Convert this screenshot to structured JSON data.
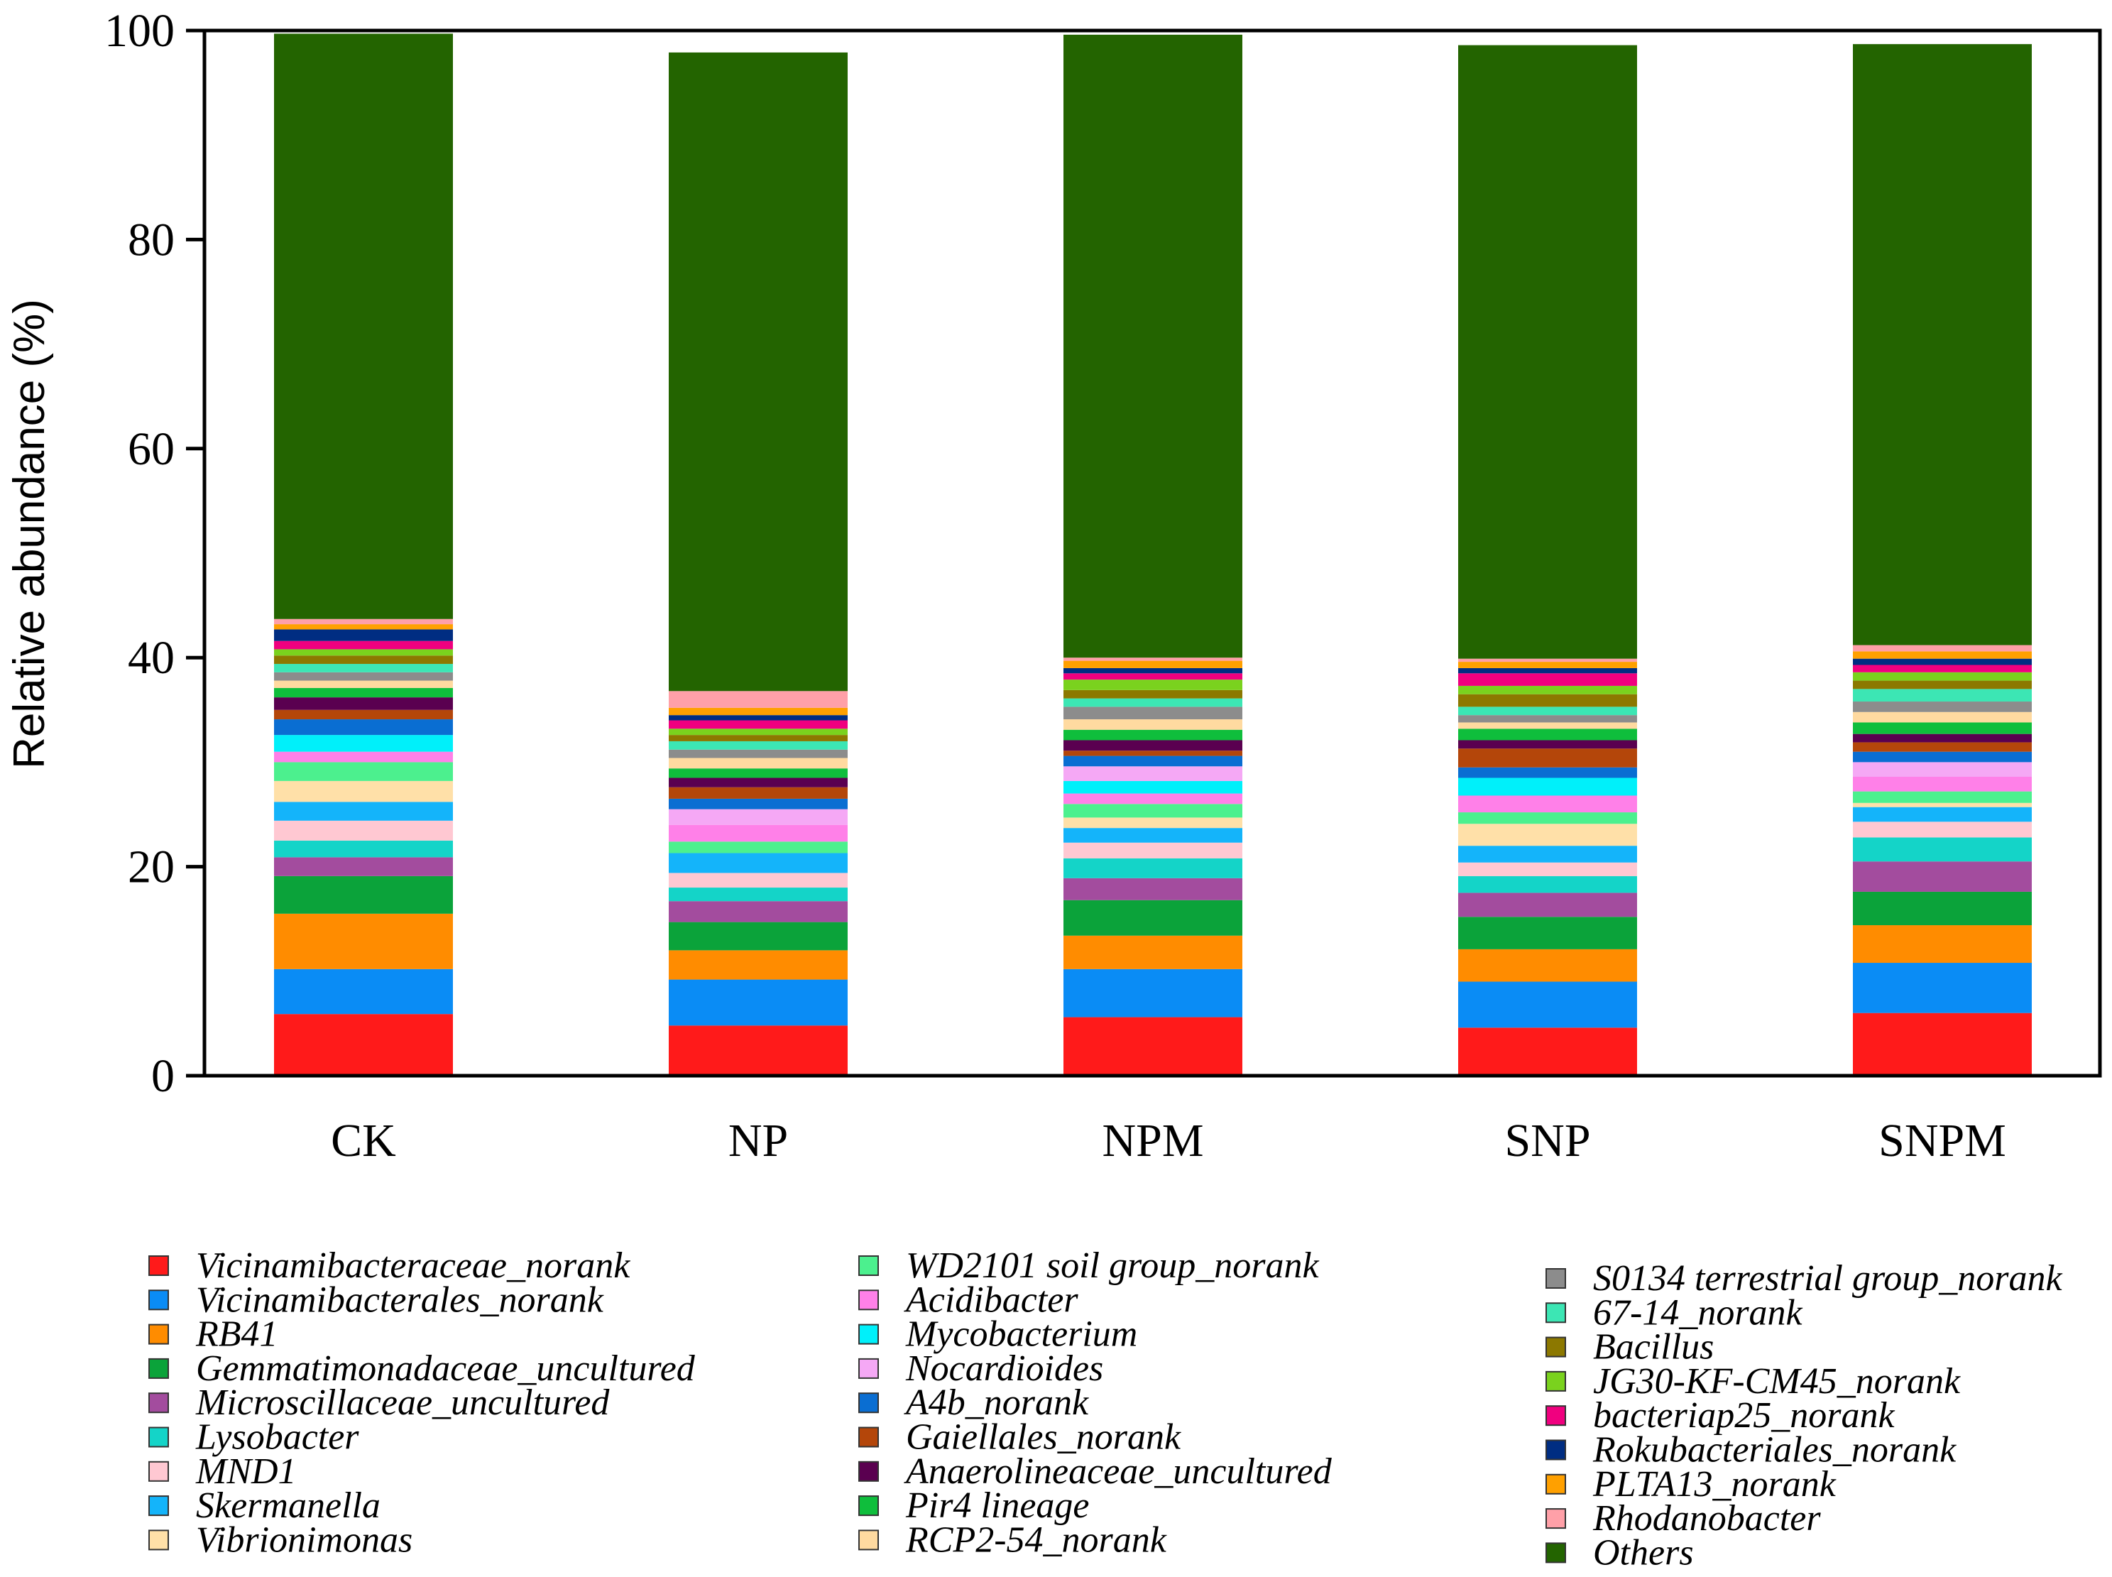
{
  "chart_data": {
    "type": "bar",
    "stacked": true,
    "ylabel": "Relative abundance (%)",
    "xlabel": "",
    "ylim": [
      0,
      100
    ],
    "yticks": [
      0,
      20,
      40,
      60,
      80,
      100
    ],
    "categories": [
      "CK",
      "NP",
      "NPM",
      "SNP",
      "SNPM"
    ],
    "series": [
      {
        "name": "Vicinamibacteraceae_norank",
        "color": "#FF1A1A",
        "values": [
          5.9,
          4.8,
          5.6,
          4.6,
          6.0
        ]
      },
      {
        "name": "Vicinamibacterales_norank",
        "color": "#0A8CF5",
        "values": [
          4.3,
          4.4,
          4.6,
          4.4,
          4.8
        ]
      },
      {
        "name": "RB41",
        "color": "#FF8C00",
        "values": [
          5.3,
          2.8,
          3.2,
          3.1,
          3.6
        ]
      },
      {
        "name": "Gemmatimonadaceae_uncultured",
        "color": "#0BA33A",
        "values": [
          3.6,
          2.7,
          3.4,
          3.1,
          3.2
        ]
      },
      {
        "name": "Microscillaceae_uncultured",
        "color": "#A34C9E",
        "values": [
          1.8,
          2.0,
          2.1,
          2.3,
          2.9
        ]
      },
      {
        "name": "Lysobacter",
        "color": "#14D4C8",
        "values": [
          1.6,
          1.3,
          1.9,
          1.6,
          2.3
        ]
      },
      {
        "name": "MND1",
        "color": "#FFC8D2",
        "values": [
          1.9,
          1.4,
          1.5,
          1.3,
          1.5
        ]
      },
      {
        "name": "Skermanella",
        "color": "#14B4FA",
        "values": [
          1.8,
          1.9,
          1.4,
          1.6,
          1.4
        ]
      },
      {
        "name": "Vibrionimonas",
        "color": "#FFE0A8",
        "values": [
          2.0,
          0.0,
          1.0,
          2.1,
          0.4
        ]
      },
      {
        "name": "WD2101 soil group_norank",
        "color": "#4CF08E",
        "values": [
          1.8,
          1.1,
          1.3,
          1.1,
          1.1
        ]
      },
      {
        "name": "Acidibacter",
        "color": "#FF80E8",
        "values": [
          1.0,
          1.6,
          1.0,
          1.6,
          1.4
        ]
      },
      {
        "name": "Mycobacterium",
        "color": "#00F0FA",
        "values": [
          1.6,
          0.0,
          1.2,
          1.7,
          0.0
        ]
      },
      {
        "name": "Nocardioides",
        "color": "#F5A8F5",
        "values": [
          0.0,
          1.5,
          1.4,
          0.0,
          1.4
        ]
      },
      {
        "name": "A4b_norank",
        "color": "#0A6ED2",
        "values": [
          1.5,
          1.0,
          1.0,
          1.0,
          1.0
        ]
      },
      {
        "name": "Gaiellales_norank",
        "color": "#B4460A",
        "values": [
          0.9,
          1.1,
          0.5,
          1.8,
          0.9
        ]
      },
      {
        "name": "Anaerolineaceae_uncultured",
        "color": "#5A0050",
        "values": [
          1.2,
          0.9,
          1.0,
          0.8,
          0.8
        ]
      },
      {
        "name": "Pir4 lineage",
        "color": "#0FBE3C",
        "values": [
          0.9,
          0.9,
          1.0,
          1.1,
          1.1
        ]
      },
      {
        "name": "RCP2-54_norank",
        "color": "#FFDAA0",
        "values": [
          0.7,
          1.0,
          1.0,
          0.6,
          1.0
        ]
      },
      {
        "name": "S0134 terrestrial group_norank",
        "color": "#8C8C8C",
        "values": [
          0.8,
          0.8,
          1.2,
          0.7,
          1.0
        ]
      },
      {
        "name": "67-14_norank",
        "color": "#3CE6B4",
        "values": [
          0.8,
          0.8,
          0.8,
          0.8,
          1.2
        ]
      },
      {
        "name": "Bacillus",
        "color": "#8C7800",
        "values": [
          0.8,
          0.6,
          0.8,
          1.2,
          0.8
        ]
      },
      {
        "name": "JG30-KF-CM45_norank",
        "color": "#7AD21E",
        "values": [
          0.6,
          0.6,
          1.0,
          0.8,
          0.8
        ]
      },
      {
        "name": "bacteriap25_norank",
        "color": "#F0007F",
        "values": [
          0.8,
          0.8,
          0.6,
          1.2,
          0.7
        ]
      },
      {
        "name": "Rokubacteriales_norank",
        "color": "#002D82",
        "values": [
          1.1,
          0.5,
          0.5,
          0.5,
          0.6
        ]
      },
      {
        "name": "PLTA13_norank",
        "color": "#FFA000",
        "values": [
          0.5,
          0.7,
          0.7,
          0.6,
          0.7
        ]
      },
      {
        "name": "Rhodanobacter",
        "color": "#FFA0A8",
        "values": [
          0.5,
          1.6,
          0.3,
          0.3,
          0.6
        ]
      },
      {
        "name": "Others",
        "color": "#236400",
        "values": [
          56.0,
          61.1,
          59.6,
          58.7,
          57.5
        ]
      }
    ]
  }
}
